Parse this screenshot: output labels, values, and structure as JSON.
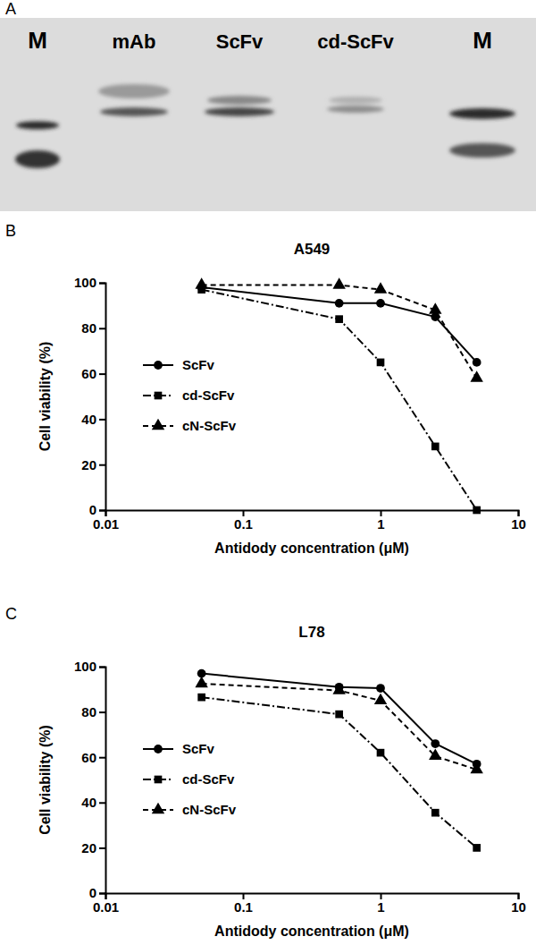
{
  "chart_data": [
    {
      "type": "gel",
      "annotations": [
        "A"
      ],
      "categories": [
        "M",
        "mAb",
        "ScFv",
        "cd-ScFv",
        "M"
      ]
    },
    {
      "type": "line",
      "annotations": [
        "B"
      ],
      "title": "A549",
      "xlabel": "Antidody concentration (μM)",
      "ylabel": "Cell viability (%)",
      "x": [
        0.05,
        0.5,
        1,
        2.5,
        5
      ],
      "series": [
        {
          "name": "ScFv",
          "color": "#000000",
          "marker": "circle",
          "line_style": "solid",
          "values": [
            98,
            91,
            91,
            85,
            65
          ]
        },
        {
          "name": "cd-ScFv",
          "color": "#000000",
          "marker": "square",
          "line_style": "dash-dot",
          "values": [
            97,
            84,
            65,
            28,
            0
          ]
        },
        {
          "name": "cN-ScFv",
          "color": "#000000",
          "marker": "triangle",
          "line_style": "dashed",
          "values": [
            99,
            99,
            97,
            88,
            58
          ]
        }
      ],
      "log": "x",
      "xlim": [
        0.01,
        10
      ],
      "xticks": [
        0.01,
        0.1,
        1,
        10
      ],
      "ylim": [
        0,
        100
      ],
      "yticks": [
        0,
        20,
        40,
        60,
        80,
        100
      ],
      "grid": false,
      "legend": "left"
    },
    {
      "type": "line",
      "annotations": [
        "C"
      ],
      "title": "L78",
      "xlabel": "Antidody concentration (μM)",
      "ylabel": "Cell viability (%)",
      "x": [
        0.05,
        0.5,
        1,
        2.5,
        5
      ],
      "series": [
        {
          "name": "ScFv",
          "color": "#000000",
          "marker": "circle",
          "line_style": "solid",
          "values": [
            97,
            91,
            90.5,
            66,
            57
          ]
        },
        {
          "name": "cd-ScFv",
          "color": "#000000",
          "marker": "square",
          "line_style": "dash-dot",
          "values": [
            86.5,
            79,
            62,
            35.5,
            20
          ]
        },
        {
          "name": "cN-ScFv",
          "color": "#000000",
          "marker": "triangle",
          "line_style": "dashed",
          "values": [
            92.5,
            89.5,
            85,
            60.5,
            54.5
          ]
        }
      ],
      "log": "x",
      "xlim": [
        0.01,
        10
      ],
      "xticks": [
        0.01,
        0.1,
        1,
        10
      ],
      "ylim": [
        0,
        100
      ],
      "yticks": [
        0,
        20,
        40,
        60,
        80,
        100
      ],
      "grid": false,
      "legend": "left"
    }
  ]
}
